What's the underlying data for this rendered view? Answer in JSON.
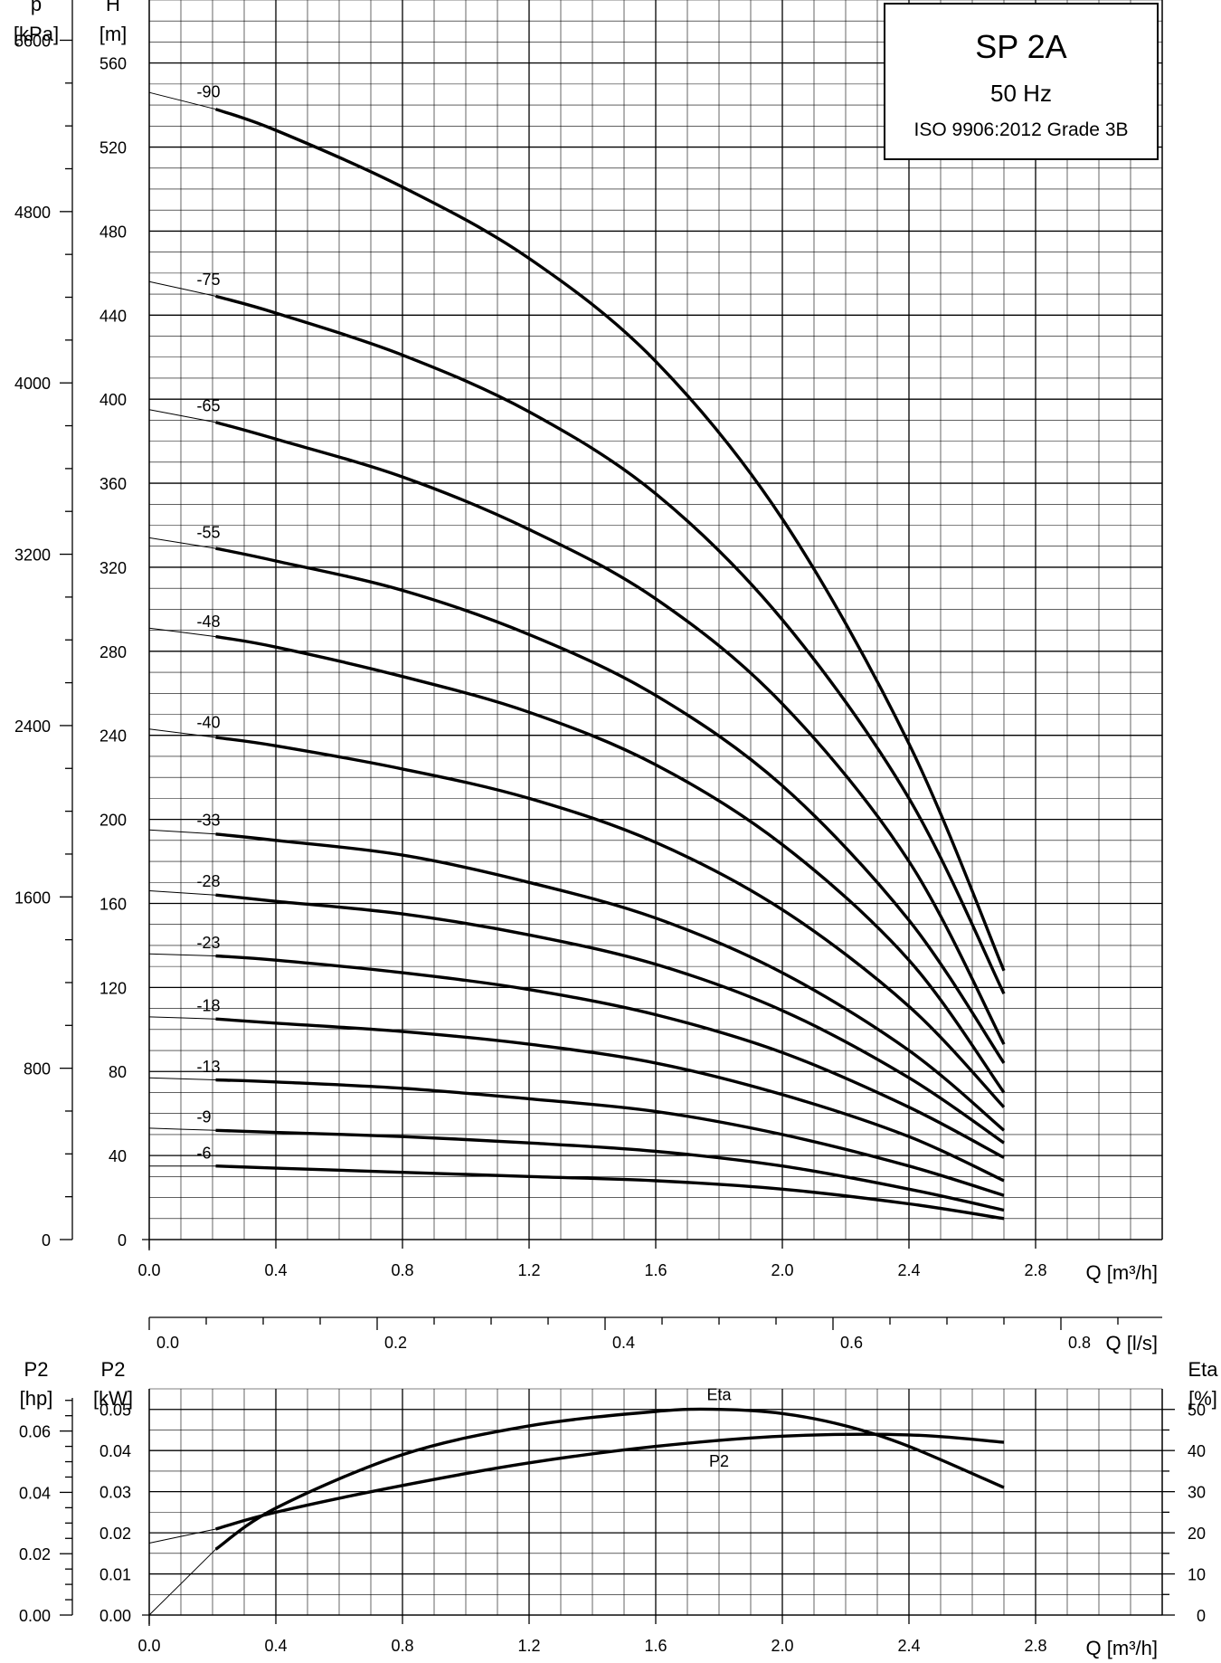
{
  "title_box": {
    "model": "SP 2A",
    "frequency": "50 Hz",
    "standard": "ISO 9906:2012 Grade 3B"
  },
  "chart_data": [
    {
      "id": "head",
      "type": "line",
      "title": "SP 2A",
      "x_axis": {
        "label": "Q [m³/h]",
        "range": [
          0,
          3.2
        ],
        "ticks": [
          "0.0",
          "0.4",
          "0.8",
          "1.2",
          "1.6",
          "2.0",
          "2.4",
          "2.8"
        ]
      },
      "y_axis_left": {
        "label_line1": "H",
        "label_line2": "[m]",
        "range": [
          0,
          590
        ],
        "ticks": [
          "0",
          "40",
          "80",
          "120",
          "160",
          "200",
          "240",
          "280",
          "320",
          "360",
          "400",
          "440",
          "480",
          "520",
          "560"
        ]
      },
      "y_axis_secondary": {
        "label_line1": "p",
        "label_line2": "[kPa]",
        "ticks": [
          "0",
          "800",
          "1600",
          "2400",
          "3200",
          "4000",
          "4800",
          "5600"
        ]
      },
      "grid": true,
      "series": [
        {
          "name": "-90",
          "x": [
            0.0,
            0.21,
            0.4,
            0.8,
            1.2,
            1.6,
            2.0,
            2.4,
            2.7
          ],
          "y": [
            546,
            538,
            528,
            501,
            467,
            418,
            343,
            236,
            128
          ]
        },
        {
          "name": "-75",
          "x": [
            0.0,
            0.21,
            0.4,
            0.8,
            1.2,
            1.6,
            2.0,
            2.4,
            2.7
          ],
          "y": [
            456,
            449,
            441,
            421,
            394,
            355,
            295,
            210,
            117
          ]
        },
        {
          "name": "-65",
          "x": [
            0.0,
            0.21,
            0.4,
            0.8,
            1.2,
            1.6,
            2.0,
            2.4,
            2.7
          ],
          "y": [
            395,
            389,
            381,
            363,
            338,
            305,
            255,
            180,
            93
          ]
        },
        {
          "name": "-55",
          "x": [
            0.0,
            0.21,
            0.4,
            0.8,
            1.2,
            1.6,
            2.0,
            2.4,
            2.7
          ],
          "y": [
            334,
            329,
            323,
            309,
            288,
            259,
            216,
            152,
            84
          ]
        },
        {
          "name": "-48",
          "x": [
            0.0,
            0.21,
            0.4,
            0.8,
            1.2,
            1.6,
            2.0,
            2.4,
            2.7
          ],
          "y": [
            291,
            287,
            282,
            268,
            251,
            226,
            188,
            133,
            70
          ]
        },
        {
          "name": "-40",
          "x": [
            0.0,
            0.21,
            0.4,
            0.8,
            1.2,
            1.6,
            2.0,
            2.4,
            2.7
          ],
          "y": [
            243,
            239,
            235,
            224,
            210,
            189,
            157,
            111,
            63
          ]
        },
        {
          "name": "-33",
          "x": [
            0.0,
            0.21,
            0.4,
            0.8,
            1.2,
            1.6,
            2.0,
            2.4,
            2.7
          ],
          "y": [
            195,
            193,
            190,
            183,
            170,
            153,
            127,
            90,
            52
          ]
        },
        {
          "name": "-28",
          "x": [
            0.0,
            0.21,
            0.4,
            0.8,
            1.2,
            1.6,
            2.0,
            2.4,
            2.7
          ],
          "y": [
            166,
            164,
            161,
            155,
            145,
            131,
            109,
            77,
            46
          ]
        },
        {
          "name": "-23",
          "x": [
            0.0,
            0.21,
            0.4,
            0.8,
            1.2,
            1.6,
            2.0,
            2.4,
            2.7
          ],
          "y": [
            136,
            135,
            133,
            127,
            119,
            107,
            89,
            63,
            39
          ]
        },
        {
          "name": "-18",
          "x": [
            0.0,
            0.21,
            0.4,
            0.8,
            1.2,
            1.6,
            2.0,
            2.4,
            2.7
          ],
          "y": [
            106,
            105,
            103,
            99,
            93,
            84,
            69,
            49,
            28
          ]
        },
        {
          "name": "-13",
          "x": [
            0.0,
            0.21,
            0.4,
            0.8,
            1.2,
            1.6,
            2.0,
            2.4,
            2.7
          ],
          "y": [
            77,
            76,
            75,
            72,
            67,
            61,
            50,
            35,
            21
          ]
        },
        {
          "name": "-9",
          "x": [
            0.0,
            0.21,
            0.4,
            0.8,
            1.2,
            1.6,
            2.0,
            2.4,
            2.7
          ],
          "y": [
            53,
            52,
            51,
            49,
            46,
            42,
            35,
            24,
            14
          ]
        },
        {
          "name": "-6",
          "x": [
            0.0,
            0.21,
            0.4,
            0.8,
            1.2,
            1.6,
            2.0,
            2.4,
            2.7
          ],
          "y": [
            35,
            35,
            34,
            32,
            30,
            28,
            24,
            17,
            10
          ]
        }
      ]
    },
    {
      "id": "flow-ls",
      "type": "axis",
      "x_axis": {
        "label": "Q [l/s]",
        "ticks": [
          "0.0",
          "0.2",
          "0.4",
          "0.6",
          "0.8"
        ]
      }
    },
    {
      "id": "power-efficiency",
      "type": "line",
      "x_axis": {
        "label": "Q [m³/h]",
        "range": [
          0,
          3.2
        ],
        "ticks": [
          "0.0",
          "0.4",
          "0.8",
          "1.2",
          "1.6",
          "2.0",
          "2.4",
          "2.8"
        ]
      },
      "y_axis_left": {
        "label_line1": "P2",
        "label_line2": "[kW]",
        "range": [
          0,
          0.055
        ],
        "ticks": [
          "0.00",
          "0.01",
          "0.02",
          "0.03",
          "0.04",
          "0.05"
        ]
      },
      "y_axis_hp": {
        "label_line1": "P2",
        "label_line2": "[hp]",
        "ticks": [
          "0.00",
          "0.02",
          "0.04",
          "0.06"
        ]
      },
      "y_axis_right": {
        "label_line1": "Eta",
        "label_line2": "[%]",
        "range": [
          0,
          55
        ],
        "ticks": [
          "0",
          "10",
          "20",
          "30",
          "40",
          "50"
        ]
      },
      "grid": true,
      "series": [
        {
          "name": "Eta",
          "axis": "right",
          "x": [
            0.0,
            0.21,
            0.4,
            0.8,
            1.2,
            1.6,
            1.8,
            2.0,
            2.2,
            2.4,
            2.7
          ],
          "y": [
            0,
            16,
            26,
            39,
            46,
            49.5,
            50,
            49,
            46,
            41,
            31
          ]
        },
        {
          "name": "P2",
          "axis": "left",
          "x": [
            0.0,
            0.21,
            0.4,
            0.8,
            1.2,
            1.6,
            2.0,
            2.4,
            2.7
          ],
          "y": [
            0.0175,
            0.0209,
            0.025,
            0.0315,
            0.037,
            0.041,
            0.0435,
            0.0438,
            0.042
          ]
        }
      ]
    }
  ]
}
